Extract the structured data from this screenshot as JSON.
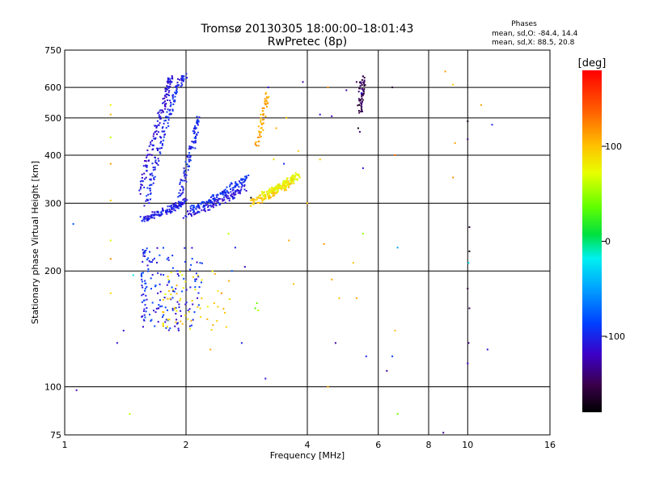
{
  "header": {
    "title_line1": "Tromsø 20130305 18:00:00–18:01:43",
    "title_line2": "RwPretec (8p)",
    "stats_title": "Phases",
    "stats_line1": "mean, sd,O:  -84.4, 14.4",
    "stats_line2": "mean, sd,X:   88.5, 20.8"
  },
  "colorbar": {
    "unit": "[deg]",
    "min": -180,
    "max": 180,
    "tick_labels": [
      "100",
      "0",
      "-100"
    ],
    "tick_values": [
      100,
      0,
      -100
    ]
  },
  "chart_data": {
    "type": "scatter",
    "title": "Tromsø 20130305 18:00:00–18:01:43",
    "subtitle": "RwPretec (8p)",
    "xlabel": "Frequency [MHz]",
    "ylabel": "Stationary phase Virtual Height [km]",
    "x_scale": "log2",
    "y_scale": "log",
    "xlim": [
      1,
      16
    ],
    "ylim": [
      75,
      750
    ],
    "x_ticks": [
      1,
      2,
      4,
      6,
      8,
      10,
      16
    ],
    "x_tick_labels": [
      "1",
      "2",
      "4",
      "6",
      "8",
      "10",
      "16"
    ],
    "y_ticks": [
      75,
      100,
      200,
      300,
      400,
      500,
      600,
      750
    ],
    "y_tick_labels": [
      "75",
      "100",
      "200",
      "300",
      "400",
      "500",
      "600",
      "750"
    ],
    "grid": true,
    "color_by": "phase [deg]",
    "traces": [
      {
        "x": [
          1.55,
          1.6,
          1.65,
          1.7,
          1.75,
          1.8,
          1.85,
          1.9,
          1.95,
          2.0
        ],
        "y": [
          272,
          275,
          278,
          282,
          285,
          288,
          292,
          296,
          300,
          304
        ],
        "phase": -105
      },
      {
        "x": [
          1.6,
          1.63,
          1.66,
          1.7,
          1.74,
          1.78,
          1.82,
          1.86,
          1.9,
          1.95,
          2.0
        ],
        "y": [
          300,
          330,
          360,
          400,
          440,
          480,
          520,
          560,
          600,
          630,
          645
        ],
        "phase": -100
      },
      {
        "x": [
          1.55,
          1.58,
          1.62,
          1.66,
          1.7,
          1.74,
          1.78,
          1.8,
          1.82,
          1.84
        ],
        "y": [
          320,
          360,
          400,
          440,
          480,
          520,
          560,
          590,
          620,
          640
        ],
        "phase": -110
      },
      {
        "x": [
          1.9,
          1.94,
          1.98,
          2.02,
          2.06,
          2.1,
          2.12,
          2.14
        ],
        "y": [
          290,
          320,
          350,
          380,
          410,
          440,
          470,
          500
        ],
        "phase": -100
      },
      {
        "x": [
          2.0,
          2.1,
          2.2,
          2.3,
          2.4,
          2.5,
          2.6,
          2.7,
          2.8
        ],
        "y": [
          280,
          285,
          290,
          296,
          302,
          308,
          314,
          322,
          330
        ],
        "phase": -108
      },
      {
        "x": [
          2.05,
          2.15,
          2.25,
          2.35,
          2.45,
          2.55,
          2.65,
          2.75,
          2.85
        ],
        "y": [
          290,
          296,
          302,
          310,
          318,
          326,
          334,
          342,
          350
        ],
        "phase": -95
      },
      {
        "x": [
          2.9,
          3.0,
          3.1,
          3.2,
          3.3,
          3.4,
          3.5,
          3.6,
          3.7
        ],
        "y": [
          300,
          305,
          310,
          315,
          320,
          325,
          330,
          338,
          345
        ],
        "phase": 95
      },
      {
        "x": [
          3.1,
          3.2,
          3.3,
          3.4,
          3.5,
          3.6,
          3.7,
          3.8
        ],
        "y": [
          315,
          320,
          325,
          330,
          336,
          342,
          348,
          355
        ],
        "phase": 75
      },
      {
        "x": [
          3.0,
          3.05,
          3.1,
          3.15,
          3.2
        ],
        "y": [
          420,
          460,
          500,
          540,
          580
        ],
        "phase": 110
      },
      {
        "x": [
          5.4,
          5.42,
          5.45,
          5.48,
          5.5
        ],
        "y": [
          520,
          550,
          580,
          610,
          640
        ],
        "phase": -150
      }
    ],
    "clusters": [
      {
        "x": [
          1.55,
          2.2
        ],
        "y": [
          140,
          230
        ],
        "phase": -100,
        "count": 160
      },
      {
        "x": [
          1.75,
          2.6
        ],
        "y": [
          140,
          200
        ],
        "phase": 90,
        "count": 60
      }
    ],
    "points": [
      {
        "x": 2.97,
        "y": 160,
        "phase": 30
      },
      {
        "x": 3.0,
        "y": 165,
        "phase": 40
      },
      {
        "x": 3.02,
        "y": 158,
        "phase": 55
      },
      {
        "x": 1.3,
        "y": 540,
        "phase": 80
      },
      {
        "x": 1.3,
        "y": 510,
        "phase": 105
      },
      {
        "x": 1.3,
        "y": 445,
        "phase": 60
      },
      {
        "x": 1.3,
        "y": 380,
        "phase": 115
      },
      {
        "x": 1.3,
        "y": 305,
        "phase": 95
      },
      {
        "x": 1.3,
        "y": 240,
        "phase": 70
      },
      {
        "x": 1.3,
        "y": 215,
        "phase": 120
      },
      {
        "x": 1.3,
        "y": 175,
        "phase": 90
      },
      {
        "x": 1.05,
        "y": 265,
        "phase": -80
      },
      {
        "x": 1.07,
        "y": 98,
        "phase": -120
      },
      {
        "x": 1.4,
        "y": 140,
        "phase": -110
      },
      {
        "x": 1.45,
        "y": 85,
        "phase": 60
      },
      {
        "x": 1.48,
        "y": 195,
        "phase": -20
      },
      {
        "x": 5.4,
        "y": 460,
        "phase": -140
      },
      {
        "x": 5.5,
        "y": 370,
        "phase": -110
      },
      {
        "x": 5.5,
        "y": 250,
        "phase": 50
      },
      {
        "x": 5.6,
        "y": 120,
        "phase": -100
      },
      {
        "x": 6.5,
        "y": 600,
        "phase": -160
      },
      {
        "x": 6.6,
        "y": 400,
        "phase": 130
      },
      {
        "x": 6.7,
        "y": 230,
        "phase": -50
      },
      {
        "x": 6.5,
        "y": 120,
        "phase": -90
      },
      {
        "x": 6.3,
        "y": 110,
        "phase": -130
      },
      {
        "x": 6.7,
        "y": 85,
        "phase": 40
      },
      {
        "x": 8.8,
        "y": 660,
        "phase": 115
      },
      {
        "x": 9.2,
        "y": 610,
        "phase": 95
      },
      {
        "x": 9.3,
        "y": 430,
        "phase": 110
      },
      {
        "x": 9.2,
        "y": 350,
        "phase": 120
      },
      {
        "x": 10.0,
        "y": 490,
        "phase": -170
      },
      {
        "x": 10.0,
        "y": 440,
        "phase": -140
      },
      {
        "x": 10.1,
        "y": 260,
        "phase": -160
      },
      {
        "x": 10.1,
        "y": 225,
        "phase": -170
      },
      {
        "x": 10.05,
        "y": 210,
        "phase": -20
      },
      {
        "x": 10.0,
        "y": 180,
        "phase": -160
      },
      {
        "x": 10.1,
        "y": 160,
        "phase": -150
      },
      {
        "x": 10.05,
        "y": 130,
        "phase": -140
      },
      {
        "x": 10.0,
        "y": 115,
        "phase": -120
      },
      {
        "x": 10.8,
        "y": 540,
        "phase": 110
      },
      {
        "x": 11.5,
        "y": 480,
        "phase": -100
      },
      {
        "x": 11.2,
        "y": 125,
        "phase": -110
      },
      {
        "x": 8.7,
        "y": 76,
        "phase": -130
      },
      {
        "x": 4.3,
        "y": 390,
        "phase": 100
      },
      {
        "x": 4.4,
        "y": 235,
        "phase": 115
      },
      {
        "x": 4.6,
        "y": 190,
        "phase": 110
      },
      {
        "x": 4.8,
        "y": 170,
        "phase": 100
      },
      {
        "x": 4.5,
        "y": 100,
        "phase": 110
      },
      {
        "x": 4.5,
        "y": 600,
        "phase": 120
      },
      {
        "x": 4.3,
        "y": 510,
        "phase": -110
      },
      {
        "x": 4.6,
        "y": 505,
        "phase": -120
      },
      {
        "x": 3.9,
        "y": 620,
        "phase": -130
      },
      {
        "x": 3.5,
        "y": 380,
        "phase": -100
      },
      {
        "x": 3.55,
        "y": 500,
        "phase": 100
      },
      {
        "x": 3.15,
        "y": 105,
        "phase": -110
      },
      {
        "x": 3.6,
        "y": 240,
        "phase": 110
      },
      {
        "x": 3.7,
        "y": 185,
        "phase": 100
      },
      {
        "x": 2.8,
        "y": 205,
        "phase": -120
      },
      {
        "x": 2.75,
        "y": 130,
        "phase": -100
      },
      {
        "x": 2.55,
        "y": 250,
        "phase": 60
      },
      {
        "x": 1.35,
        "y": 130,
        "phase": -110
      },
      {
        "x": 2.3,
        "y": 125,
        "phase": 110
      },
      {
        "x": 2.9,
        "y": 310,
        "phase": -180
      },
      {
        "x": 3.3,
        "y": 390,
        "phase": 90
      },
      {
        "x": 3.35,
        "y": 470,
        "phase": 110
      },
      {
        "x": 3.2,
        "y": 600,
        "phase": -110
      },
      {
        "x": 3.8,
        "y": 410,
        "phase": 95
      },
      {
        "x": 4.0,
        "y": 300,
        "phase": 100
      },
      {
        "x": 5.0,
        "y": 590,
        "phase": -130
      },
      {
        "x": 5.2,
        "y": 210,
        "phase": 100
      },
      {
        "x": 5.3,
        "y": 170,
        "phase": 110
      },
      {
        "x": 6.6,
        "y": 140,
        "phase": 100
      },
      {
        "x": 2.35,
        "y": 165,
        "phase": 100
      },
      {
        "x": 2.45,
        "y": 175,
        "phase": 120
      },
      {
        "x": 2.6,
        "y": 200,
        "phase": -80
      },
      {
        "x": 2.65,
        "y": 230,
        "phase": -100
      },
      {
        "x": 4.7,
        "y": 130,
        "phase": -130
      },
      {
        "x": 5.35,
        "y": 470,
        "phase": -170
      },
      {
        "x": 5.38,
        "y": 540,
        "phase": -175
      },
      {
        "x": 5.45,
        "y": 580,
        "phase": -110
      },
      {
        "x": 5.3,
        "y": 620,
        "phase": -150
      }
    ]
  }
}
